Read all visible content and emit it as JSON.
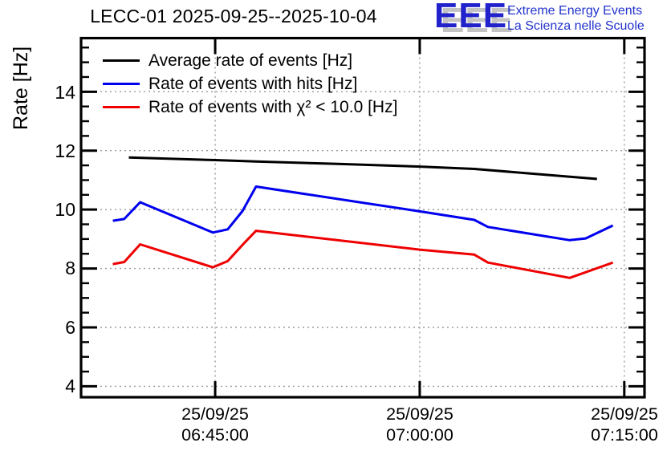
{
  "title": "LECC-01 2025-09-25--2025-10-04",
  "logo": {
    "acronym": "EEE",
    "line1": "Extreme Energy Events",
    "line2": "La Scienza nelle Scuole",
    "color": "#2222cc",
    "text_color": "#2233cc"
  },
  "chart_data": {
    "type": "line",
    "title": "LECC-01 2025-09-25--2025-10-04",
    "xlabel": "",
    "ylabel": "Rate [Hz]",
    "ylim": [
      3.63,
      15.82
    ],
    "y_major_ticks": [
      4,
      6,
      8,
      10,
      12,
      14
    ],
    "y_tick_labels": [
      "14",
      "12",
      "10",
      "8",
      "6",
      "4"
    ],
    "y_minor_step": 0.5,
    "grid": "dotted gray on both axes at major ticks",
    "legend_position": "top-left inside plot, no border",
    "x_axis": {
      "start": "06:35:10",
      "end": "07:16:29",
      "ticks": [
        {
          "date": "25/09/25",
          "time": "06:45:00"
        },
        {
          "date": "25/09/25",
          "time": "07:00:00"
        },
        {
          "date": "25/09/25",
          "time": "07:15:00"
        }
      ]
    },
    "series": [
      {
        "name": "Average rate of events [Hz]",
        "color": "#000000",
        "points": [
          [
            "06:38:40",
            11.77
          ],
          [
            "06:45:00",
            11.68
          ],
          [
            "06:48:00",
            11.63
          ],
          [
            "06:54:00",
            11.55
          ],
          [
            "07:00:00",
            11.46
          ],
          [
            "07:04:00",
            11.38
          ],
          [
            "07:13:00",
            11.04
          ]
        ]
      },
      {
        "name": "Rate of events with hits [Hz]",
        "color": "#0000ee",
        "points": [
          [
            "06:37:30",
            9.62
          ],
          [
            "06:38:20",
            9.68
          ],
          [
            "06:39:30",
            10.25
          ],
          [
            "06:44:50",
            9.22
          ],
          [
            "06:45:55",
            9.33
          ],
          [
            "06:47:00",
            9.95
          ],
          [
            "06:48:00",
            10.78
          ],
          [
            "07:00:00",
            9.94
          ],
          [
            "07:04:00",
            9.65
          ],
          [
            "07:05:00",
            9.41
          ],
          [
            "07:11:00",
            8.96
          ],
          [
            "07:12:10",
            9.02
          ],
          [
            "07:14:10",
            9.46
          ]
        ]
      },
      {
        "name": "Rate of events with χ² < 10.0 [Hz]",
        "color": "#ee0000",
        "points": [
          [
            "06:37:30",
            8.15
          ],
          [
            "06:38:20",
            8.22
          ],
          [
            "06:39:30",
            8.82
          ],
          [
            "06:44:50",
            8.04
          ],
          [
            "06:45:55",
            8.25
          ],
          [
            "06:47:00",
            8.8
          ],
          [
            "06:48:00",
            9.28
          ],
          [
            "07:00:00",
            8.64
          ],
          [
            "07:04:00",
            8.47
          ],
          [
            "07:05:00",
            8.2
          ],
          [
            "07:11:00",
            7.68
          ],
          [
            "07:14:10",
            8.2
          ]
        ]
      }
    ]
  }
}
